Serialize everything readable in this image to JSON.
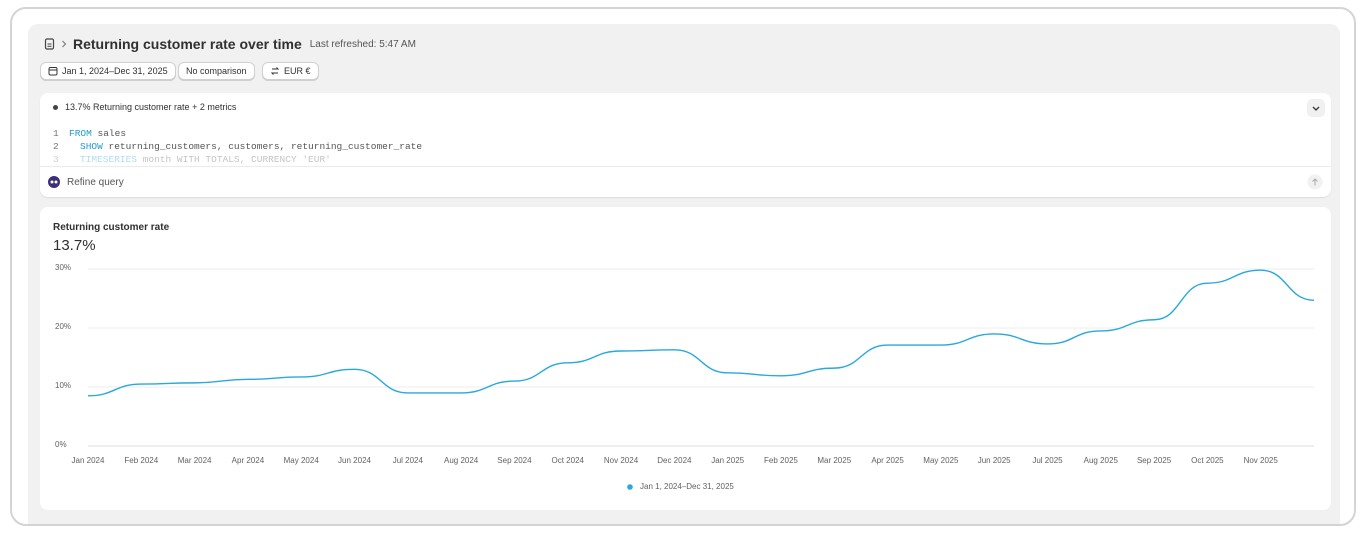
{
  "header": {
    "title": "Returning customer rate over time",
    "subtitle": "Last refreshed: 5:47 AM"
  },
  "filters": {
    "date_range": "Jan 1, 2024–Dec 31, 2025",
    "comparison": "No comparison",
    "currency": "EUR €"
  },
  "query": {
    "summary": "13.7% Returning customer rate + 2 metrics",
    "lines": [
      {
        "number": "1",
        "keyword": "FROM",
        "text": "sales"
      },
      {
        "number": "2",
        "keyword": "SHOW",
        "text": "returning_customers, customers, returning_customer_rate"
      },
      {
        "number": "3",
        "keyword": "TIMESERIES",
        "text": "month WITH TOTALS, CURRENCY 'EUR'"
      }
    ],
    "refine": "Refine query"
  },
  "chart_data": {
    "type": "line",
    "title": "Returning customer rate",
    "headline": "13.7%",
    "categories": [
      "Jan 2024",
      "Feb 2024",
      "Mar 2024",
      "Apr 2024",
      "May 2024",
      "Jun 2024",
      "Jul 2024",
      "Aug 2024",
      "Sep 2024",
      "Oct 2024",
      "Nov 2024",
      "Dec 2024",
      "Jan 2025",
      "Feb 2025",
      "Mar 2025",
      "Apr 2025",
      "May 2025",
      "Jun 2025",
      "Jul 2025",
      "Aug 2025",
      "Sep 2025",
      "Oct 2025",
      "Nov 2025",
      null
    ],
    "series": [
      {
        "name": "Jan 1, 2024–Dec 31, 2025",
        "color": "#29a8dd",
        "values": [
          8.5,
          10.5,
          10.7,
          11.3,
          11.7,
          13.0,
          9.0,
          9.0,
          11.0,
          14.1,
          16.1,
          16.3,
          12.4,
          11.9,
          13.2,
          17.1,
          17.1,
          19.0,
          17.3,
          19.5,
          21.4,
          27.6,
          29.8,
          24.7
        ]
      }
    ],
    "ylim": [
      0,
      30
    ],
    "yticks": [
      {
        "value": 0,
        "label": "0%"
      },
      {
        "value": 10,
        "label": "10%"
      },
      {
        "value": 20,
        "label": "20%"
      },
      {
        "value": 30,
        "label": "30%"
      }
    ],
    "grid": true,
    "legend": "bottom"
  }
}
